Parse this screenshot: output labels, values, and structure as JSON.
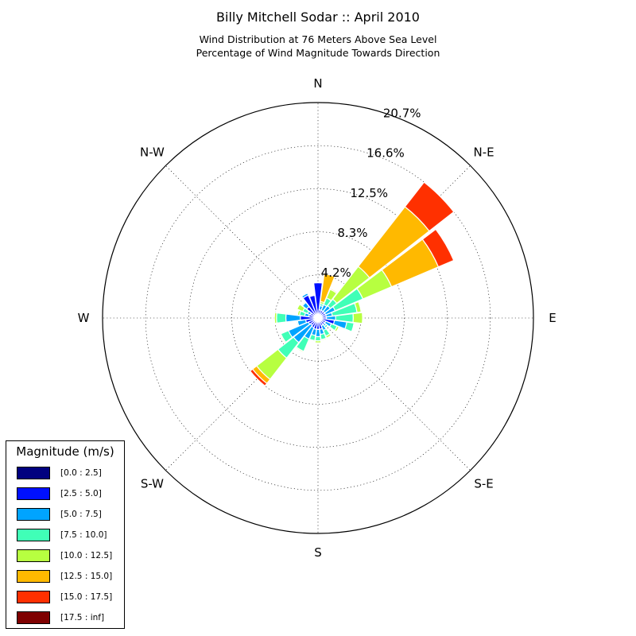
{
  "title": "Billy Mitchell Sodar :: April 2010",
  "subtitle_lines": [
    "Wind Distribution at 76 Meters Above Sea Level",
    "Percentage of Wind Magnitude Towards Direction"
  ],
  "legend": {
    "title": "Magnitude (m/s)",
    "bins": [
      {
        "label": "[0.0 : 2.5]",
        "color": "#00007f"
      },
      {
        "label": "[2.5 : 5.0]",
        "color": "#0010ff"
      },
      {
        "label": "[5.0 : 7.5]",
        "color": "#00a4ff"
      },
      {
        "label": "[7.5 : 10.0]",
        "color": "#40ffb7"
      },
      {
        "label": "[10.0 : 12.5]",
        "color": "#b7ff40"
      },
      {
        "label": "[12.5 : 15.0]",
        "color": "#ffb900"
      },
      {
        "label": "[15.0 : 17.5]",
        "color": "#ff3000"
      },
      {
        "label": "[17.5 : inf]",
        "color": "#7f0000"
      }
    ]
  },
  "chart_data": {
    "type": "wind-rose",
    "radial_unit": "%",
    "radial_ticks": [
      "4.2%",
      "8.3%",
      "12.5%",
      "16.6%",
      "20.7%"
    ],
    "radial_tick_values": [
      4.15,
      8.3,
      12.45,
      16.6,
      20.75
    ],
    "rmax": 20.75,
    "direction_labels": [
      {
        "text": "N",
        "angle": 0
      },
      {
        "text": "N-E",
        "angle": 45
      },
      {
        "text": "E",
        "angle": 90
      },
      {
        "text": "S-E",
        "angle": 135
      },
      {
        "text": "S",
        "angle": 180
      },
      {
        "text": "S-W",
        "angle": 225
      },
      {
        "text": "W",
        "angle": 270
      },
      {
        "text": "N-W",
        "angle": 315
      }
    ],
    "sector_width_deg": 14,
    "grid": true,
    "legend_position": "bottom-left",
    "sectors": [
      {
        "direction": 0,
        "cumulative": [
          0.3,
          3.4
        ]
      },
      {
        "direction": 15,
        "cumulative": [
          0.3,
          0.8,
          1.2,
          1.4,
          1.6,
          4.3,
          4.4
        ]
      },
      {
        "direction": 30,
        "cumulative": [
          0.3,
          0.8,
          1.4,
          2.1,
          3.0,
          3.1
        ]
      },
      {
        "direction": 45,
        "cumulative": [
          0.3,
          0.8,
          1.5,
          2.3,
          6.3,
          13.6,
          16.6
        ]
      },
      {
        "direction": 60,
        "cumulative": [
          0.3,
          0.8,
          1.8,
          4.7,
          7.7,
          12.6,
          14.2
        ]
      },
      {
        "direction": 75,
        "cumulative": [
          0.3,
          0.8,
          1.4,
          3.8,
          4.2
        ]
      },
      {
        "direction": 90,
        "cumulative": [
          0.3,
          0.8,
          1.7,
          3.4,
          4.3
        ]
      },
      {
        "direction": 105,
        "cumulative": [
          0.3,
          1.6,
          2.8,
          3.5
        ]
      },
      {
        "direction": 120,
        "cumulative": [
          0.3,
          0.8,
          1.4,
          2.0,
          2.2
        ]
      },
      {
        "direction": 135,
        "cumulative": [
          0.3,
          0.8,
          1.0,
          1.2
        ]
      },
      {
        "direction": 150,
        "cumulative": [
          0.3,
          0.8,
          1.3,
          1.9,
          2.1
        ]
      },
      {
        "direction": 165,
        "cumulative": [
          0.3,
          1.1,
          1.6,
          2.1,
          2.2
        ]
      },
      {
        "direction": 180,
        "cumulative": [
          0.3,
          1.1,
          1.8,
          2.2,
          2.4
        ]
      },
      {
        "direction": 195,
        "cumulative": [
          0.3,
          1.1,
          1.7,
          2.2,
          2.3
        ]
      },
      {
        "direction": 210,
        "cumulative": [
          0.3,
          1.0,
          2.2,
          3.5,
          3.6
        ]
      },
      {
        "direction": 225,
        "cumulative": [
          0.3,
          0.9,
          3.0,
          4.9,
          7.5,
          8.0,
          8.3
        ]
      },
      {
        "direction": 240,
        "cumulative": [
          0.3,
          1.0,
          3.1,
          3.9,
          4.0
        ]
      },
      {
        "direction": 255,
        "cumulative": [
          0.3,
          1.2,
          2.0,
          2.1
        ]
      },
      {
        "direction": 270,
        "cumulative": [
          0.3,
          1.7,
          3.1,
          4.0,
          4.2
        ]
      },
      {
        "direction": 285,
        "cumulative": [
          0.3,
          0.9,
          1.3,
          1.8,
          2.0
        ]
      },
      {
        "direction": 300,
        "cumulative": [
          0.3,
          0.8,
          1.1,
          1.6,
          2.2
        ]
      },
      {
        "direction": 315,
        "cumulative": [
          0.3,
          1.4,
          1.9,
          2.0
        ]
      },
      {
        "direction": 330,
        "cumulative": [
          0.3,
          2.4,
          2.6
        ]
      },
      {
        "direction": 345,
        "cumulative": [
          0.3,
          2.2
        ]
      }
    ]
  }
}
